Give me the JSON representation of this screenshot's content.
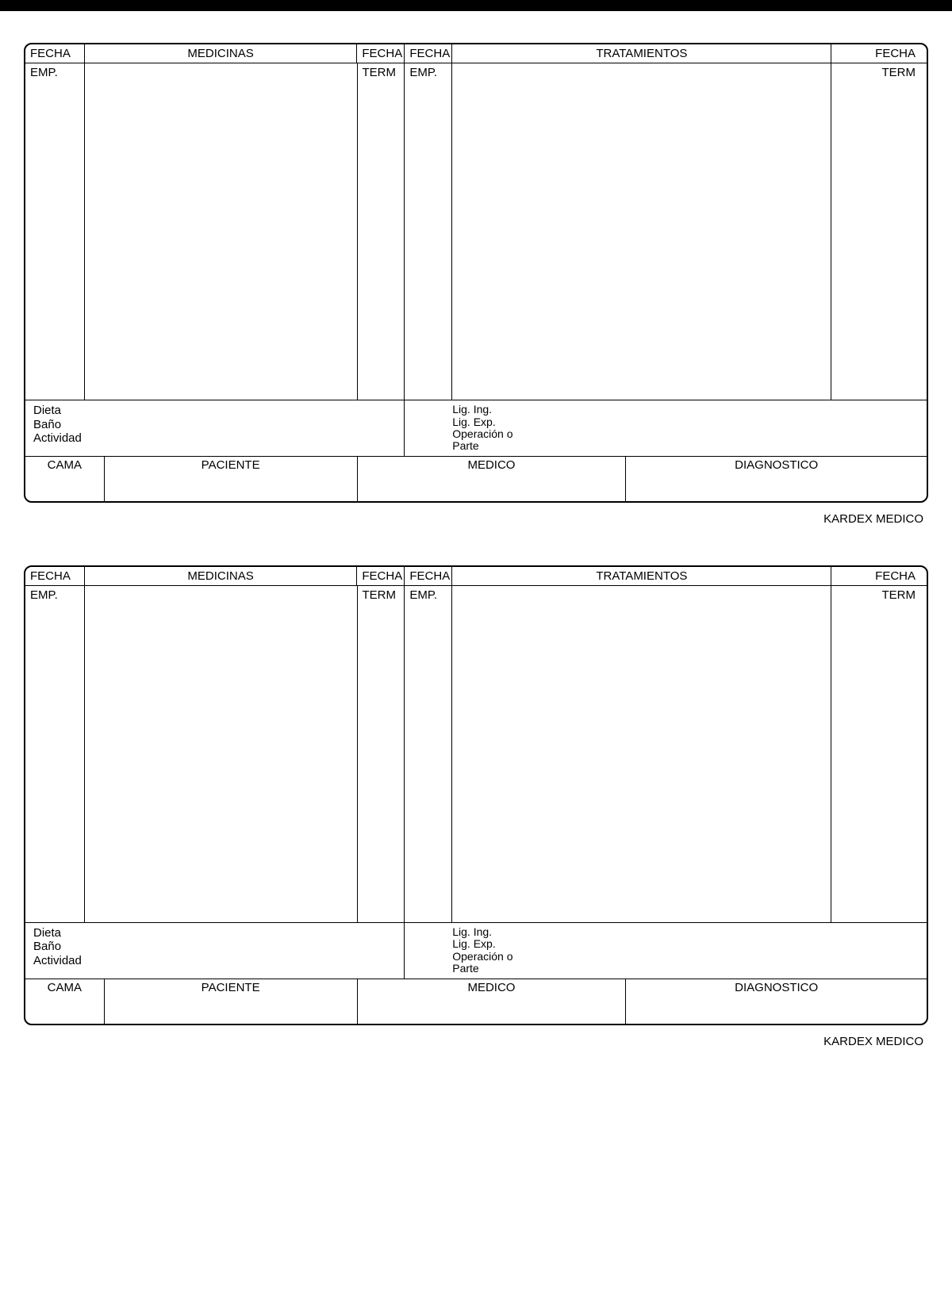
{
  "card": {
    "header": {
      "fecha_left": "FECHA",
      "medicinas": "MEDICINAS",
      "fecha_mid1": "FECHA",
      "fecha_mid2": "FECHA",
      "tratamientos": "TRATAMIENTOS",
      "fecha_right": "FECHA"
    },
    "body": {
      "emp_left": "EMP.",
      "term_left": "TERM",
      "emp_right": "EMP.",
      "term_right": "TERM"
    },
    "notes_left": {
      "l1": "Dieta",
      "l2": "Baño",
      "l3": "Actividad"
    },
    "notes_right": {
      "l1": "Lig. Ing.",
      "l2": "Lig. Exp.",
      "l3": "Operación o",
      "l4": "Parte"
    },
    "footer": {
      "cama": "CAMA",
      "paciente": "PACIENTE",
      "medico": "MEDICO",
      "diagnostico": "DIAGNOSTICO"
    },
    "kardex": "KARDEX MEDICO"
  }
}
